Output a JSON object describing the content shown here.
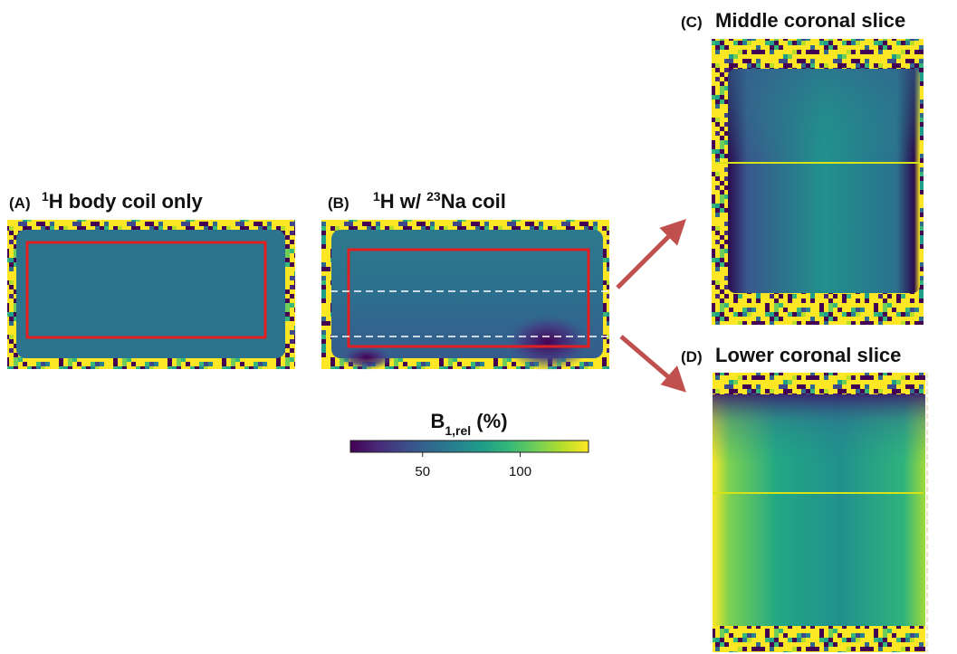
{
  "panels": [
    {
      "label": "(A)",
      "title_parts": [
        {
          "text": "1",
          "style": "sup"
        },
        {
          "text": "H body coil only",
          "style": "normal"
        }
      ]
    },
    {
      "label": "(B)",
      "title_parts": [
        {
          "text": "1",
          "style": "sup"
        },
        {
          "text": "H w/ ",
          "style": "normal"
        },
        {
          "text": "23",
          "style": "sup"
        },
        {
          "text": "Na coil",
          "style": "normal"
        }
      ]
    },
    {
      "label": "(C)",
      "title_parts": [
        {
          "text": "Middle coronal slice",
          "style": "normal"
        }
      ]
    },
    {
      "label": "(D)",
      "title_parts": [
        {
          "text": "Lower coronal slice",
          "style": "normal"
        }
      ]
    }
  ],
  "colorbar": {
    "label_parts": [
      {
        "text": "B",
        "style": "normal"
      },
      {
        "text": "1,rel",
        "style": "sub"
      },
      {
        "text": " (%)",
        "style": "normal"
      }
    ],
    "lim": [
      13,
      135
    ],
    "ticks": [
      50,
      100
    ],
    "colors": [
      "#440154",
      "#482878",
      "#3e4989",
      "#31688e",
      "#26828e",
      "#1f9e89",
      "#35b779",
      "#6ece58",
      "#b5de2b",
      "#fde725"
    ]
  }
}
